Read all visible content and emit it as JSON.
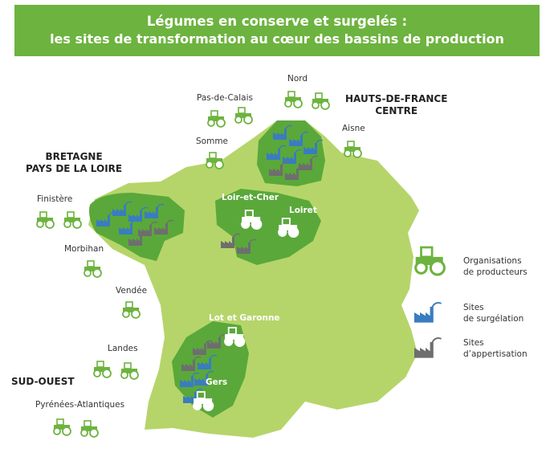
{
  "title": {
    "line1": "Légumes en conserve et surgelés :",
    "line2": "les sites de transformation au cœur des bassins de production"
  },
  "regions": {
    "bretagne": [
      "BRETAGNE",
      "PAYS DE LA LOIRE"
    ],
    "hdf": [
      "HAUTS-DE-FRANCE",
      "CENTRE"
    ],
    "sudouest": [
      "SUD-OUEST"
    ]
  },
  "departments": {
    "nord": "Nord",
    "pas_de_calais": "Pas-de-Calais",
    "aisne": "Aisne",
    "somme": "Somme",
    "finistere": "Finistère",
    "morbihan": "Morbihan",
    "vendee": "Vendée",
    "landes": "Landes",
    "pyrenees": "Pyrénées-Atlantiques",
    "loir_et_cher": "Loir-et-Cher",
    "loiret": "Loiret",
    "lot_et_garonne": "Lot et Garonne",
    "gers": "Gers"
  },
  "legend": {
    "producteurs": [
      "Organisations",
      "de producteurs"
    ],
    "surgelation": [
      "Sites",
      "de surgélation"
    ],
    "appertisation": [
      "Sites",
      "d’appertisation"
    ]
  },
  "colors": {
    "banner": "#6db33f",
    "france": "#b5d56a",
    "basin": "#5aa83a",
    "tractor": "#6db33f",
    "freeze_factory": "#3a7cc0",
    "can_factory": "#6e6e6e"
  }
}
